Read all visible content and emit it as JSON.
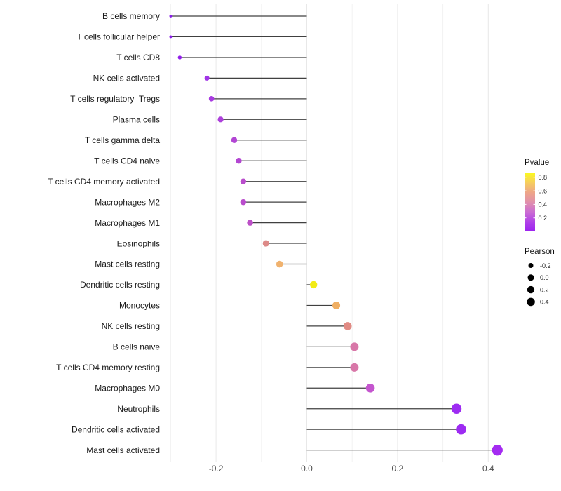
{
  "chart_data": {
    "type": "lollipop",
    "title": "",
    "xlabel": "",
    "ylabel": "",
    "x_tick_values": [
      -0.2,
      0.0,
      0.2,
      0.4
    ],
    "x_tick_labels": [
      "-0.2",
      "0.0",
      "0.2",
      "0.4"
    ],
    "xlim": [
      -0.345,
      0.45
    ],
    "grid": {
      "major": [
        -0.2,
        0.0,
        0.2,
        0.4
      ],
      "minor": [
        -0.3,
        -0.1,
        0.1,
        0.3
      ]
    },
    "baseline": 0.0,
    "points": [
      {
        "label": "B cells memory",
        "pearson": -0.3,
        "pvalue_approx": 0.03,
        "color": "#8A1CE8",
        "radius": 1.9
      },
      {
        "label": "T cells follicular helper",
        "pearson": -0.3,
        "pvalue_approx": 0.03,
        "color": "#8A1CE8",
        "radius": 1.9
      },
      {
        "label": "T cells CD8",
        "pearson": -0.28,
        "pvalue_approx": 0.06,
        "color": "#921EE9",
        "radius": 2.7
      },
      {
        "label": "NK cells activated",
        "pearson": -0.22,
        "pvalue_approx": 0.12,
        "color": "#A134E7",
        "radius": 3.5
      },
      {
        "label": "T cells regulatory  Tregs",
        "pearson": -0.21,
        "pvalue_approx": 0.15,
        "color": "#A83BE1",
        "radius": 3.8
      },
      {
        "label": "Plasma cells",
        "pearson": -0.19,
        "pvalue_approx": 0.18,
        "color": "#AD40DB",
        "radius": 4.1
      },
      {
        "label": "T cells gamma delta",
        "pearson": -0.16,
        "pvalue_approx": 0.22,
        "color": "#B246D4",
        "radius": 4.2
      },
      {
        "label": "T cells CD4 naive",
        "pearson": -0.15,
        "pvalue_approx": 0.22,
        "color": "#B346D2",
        "radius": 4.2
      },
      {
        "label": "T cells CD4 memory activated",
        "pearson": -0.14,
        "pvalue_approx": 0.26,
        "color": "#B94DCC",
        "radius": 4.2
      },
      {
        "label": "Macrophages M2",
        "pearson": -0.14,
        "pvalue_approx": 0.26,
        "color": "#B94DCC",
        "radius": 4.3
      },
      {
        "label": "Macrophages M1",
        "pearson": -0.125,
        "pvalue_approx": 0.28,
        "color": "#BC50C7",
        "radius": 4.3
      },
      {
        "label": "Eosinophils",
        "pearson": -0.09,
        "pvalue_approx": 0.55,
        "color": "#DD8A88",
        "radius": 4.6
      },
      {
        "label": "Mast cells resting",
        "pearson": -0.06,
        "pvalue_approx": 0.68,
        "color": "#F0B26E",
        "radius": 4.8
      },
      {
        "label": "Dendritic cells resting",
        "pearson": 0.015,
        "pvalue_approx": 0.87,
        "color": "#F2EB14",
        "radius": 5.2
      },
      {
        "label": "Monocytes",
        "pearson": 0.065,
        "pvalue_approx": 0.65,
        "color": "#EFAE62",
        "radius": 5.5
      },
      {
        "label": "NK cells resting",
        "pearson": 0.09,
        "pvalue_approx": 0.55,
        "color": "#E18B84",
        "radius": 5.8
      },
      {
        "label": "B cells naive",
        "pearson": 0.105,
        "pvalue_approx": 0.45,
        "color": "#D877A8",
        "radius": 6.0
      },
      {
        "label": "T cells CD4 memory resting",
        "pearson": 0.105,
        "pvalue_approx": 0.45,
        "color": "#D877A8",
        "radius": 6.0
      },
      {
        "label": "Macrophages M0",
        "pearson": 0.14,
        "pvalue_approx": 0.3,
        "color": "#C455CE",
        "radius": 6.3
      },
      {
        "label": "Neutrophils",
        "pearson": 0.33,
        "pvalue_approx": 0.05,
        "color": "#9D2BF2",
        "radius": 7.2
      },
      {
        "label": "Dendritic cells activated",
        "pearson": 0.34,
        "pvalue_approx": 0.05,
        "color": "#9D2BF2",
        "radius": 7.3
      },
      {
        "label": "Mast cells activated",
        "pearson": 0.42,
        "pvalue_approx": 0.03,
        "color": "#A42BF1",
        "radius": 7.7
      }
    ],
    "legend": {
      "position": "right",
      "pvalue": {
        "title": "Pvalue",
        "tick_labels": [
          "0.8",
          "0.6",
          "0.4",
          "0.2"
        ],
        "tick_values": [
          0.8,
          0.6,
          0.4,
          0.2
        ],
        "range": [
          0.0,
          0.87
        ],
        "gradient_top_to_bottom": [
          "#FBFB1C",
          "#F6CE5C",
          "#EEA687",
          "#E190AB",
          "#CB6DD2",
          "#B143E7",
          "#9C22F0"
        ]
      },
      "pearson": {
        "title": "Pearson",
        "entries": [
          {
            "label": "-0.2",
            "radius": 3.5
          },
          {
            "label": "0.0",
            "radius": 4.5
          },
          {
            "label": "0.2",
            "radius": 5.2
          },
          {
            "label": "0.4",
            "radius": 5.8
          }
        ],
        "dot_color": "#000000"
      }
    }
  },
  "colors": {
    "background": "#ffffff",
    "segment": "#404040",
    "grid_major": "#e8e8e8",
    "grid_minor": "#f2f2f2",
    "axis_tick_text": "#4d4d4d",
    "category_text": "#1a1a1a",
    "legend_title_text": "#111111",
    "legend_tick_text": "#1a1a1a"
  }
}
